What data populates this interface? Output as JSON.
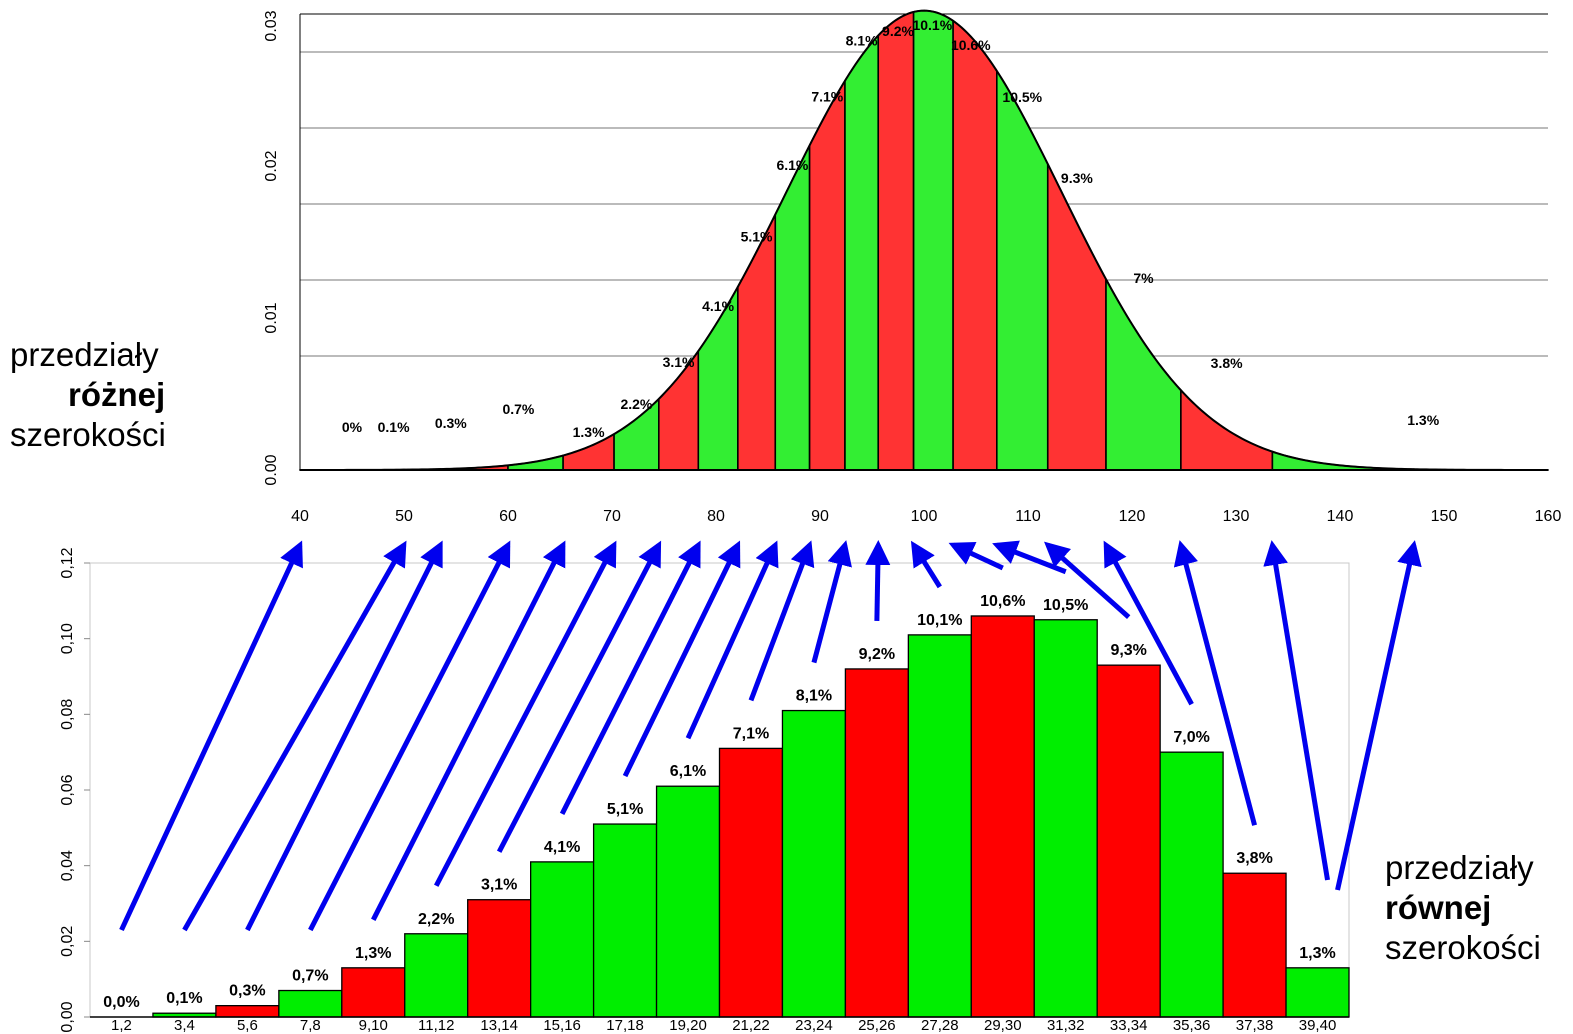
{
  "chart_data": [
    {
      "type": "bar",
      "subtype": "histogram-unequal-widths-under-normal-curve",
      "title": "",
      "xlabel": "",
      "ylabel": "",
      "x_ticks": [
        "40",
        "50",
        "60",
        "70",
        "80",
        "90",
        "100",
        "110",
        "120",
        "130",
        "140",
        "150",
        "160"
      ],
      "y_ticks": [
        "0.00",
        "0.01",
        "0.02",
        "0.03"
      ],
      "xlim": [
        40,
        160
      ],
      "ylim": [
        0,
        0.03
      ],
      "curve": {
        "distribution": "normal",
        "mean": 100,
        "sd": 13.2
      },
      "grid": "horizontal",
      "bin_edges": [
        40,
        50,
        53.5,
        60,
        65.3,
        70.2,
        74.5,
        78.3,
        82.1,
        85.7,
        89,
        92.4,
        95.6,
        99,
        102.8,
        107,
        111.9,
        117.5,
        124.7,
        133.5,
        147.1,
        152.5,
        160
      ],
      "bin_labels": [
        "0%",
        "0.1%",
        "0.3%",
        "0.7%",
        "1.3%",
        "2.2%",
        "3.1%",
        "4.1%",
        "5.1%",
        "6.1%",
        "7.1%",
        "8.1%",
        "9.2%",
        "10.1%",
        "10.6%",
        "10.5%",
        "9.3%",
        "7%",
        "3.8%",
        "1.3%"
      ],
      "colors": {
        "odd": "#ff3333",
        "even": "#33ee33",
        "edge": "#000000"
      }
    },
    {
      "type": "bar",
      "subtype": "histogram-equal-widths",
      "title": "",
      "xlabel": "",
      "ylabel": "",
      "categories": [
        "1,2",
        "3,4",
        "5,6",
        "7,8",
        "9,10",
        "11,12",
        "13,14",
        "15,16",
        "17,18",
        "19,20",
        "21,22",
        "23,24",
        "25,26",
        "27,28",
        "29,30",
        "31,32",
        "33,34",
        "35,36",
        "37,38",
        "39,40"
      ],
      "values": [
        0.0,
        0.001,
        0.003,
        0.007,
        0.013,
        0.022,
        0.031,
        0.041,
        0.051,
        0.061,
        0.071,
        0.081,
        0.092,
        0.101,
        0.106,
        0.105,
        0.093,
        0.07,
        0.038,
        0.013
      ],
      "data_labels": [
        "0,0%",
        "0,1%",
        "0,3%",
        "0,7%",
        "1,3%",
        "2,2%",
        "3,1%",
        "4,1%",
        "5,1%",
        "6,1%",
        "7,1%",
        "8,1%",
        "9,2%",
        "10,1%",
        "10,6%",
        "10,5%",
        "9,3%",
        "7,0%",
        "3,8%",
        "1,3%"
      ],
      "y_ticks": [
        "0,00",
        "0,02",
        "0,04",
        "0,06",
        "0,08",
        "0,10",
        "0,12"
      ],
      "ylim": [
        0,
        0.12
      ],
      "grid": "box",
      "colors": {
        "odd": "#ff0000",
        "even": "#00ee00",
        "edge": "#000000"
      }
    }
  ],
  "arrows": {
    "color": "#0000ee",
    "links": [
      {
        "from": "1,2",
        "to": 40
      },
      {
        "from": "3,4",
        "to": 50
      },
      {
        "from": "5,6",
        "to": 53.5
      },
      {
        "from": "7,8",
        "to": 60
      },
      {
        "from": "9,10",
        "to": 65.3
      },
      {
        "from": "11,12",
        "to": 70.2
      },
      {
        "from": "13,14",
        "to": 74.5
      },
      {
        "from": "15,16",
        "to": 78.3
      },
      {
        "from": "17,18",
        "to": 82.1
      },
      {
        "from": "19,20",
        "to": 85.7
      },
      {
        "from": "21,22",
        "to": 89
      },
      {
        "from": "23,24",
        "to": 92.4
      },
      {
        "from": "25,26",
        "to": 95.6
      },
      {
        "from": "27,28",
        "to": 99
      },
      {
        "from": "29,30",
        "to": 102.8
      },
      {
        "from": "31,32",
        "to": 107
      },
      {
        "from": "33,34",
        "to": 111.9
      },
      {
        "from": "35,36",
        "to": 117.5
      },
      {
        "from": "37,38",
        "to": 124.7
      },
      {
        "from": "39,40",
        "to": 133.5
      },
      {
        "from": "39,40",
        "to": 147.1
      }
    ]
  },
  "labels": {
    "left": {
      "line1": "przedziały",
      "line2": "różnej",
      "line3": "szerokości"
    },
    "right": {
      "line1": "przedziały",
      "line2": "równej",
      "line3": "szerokości"
    }
  }
}
